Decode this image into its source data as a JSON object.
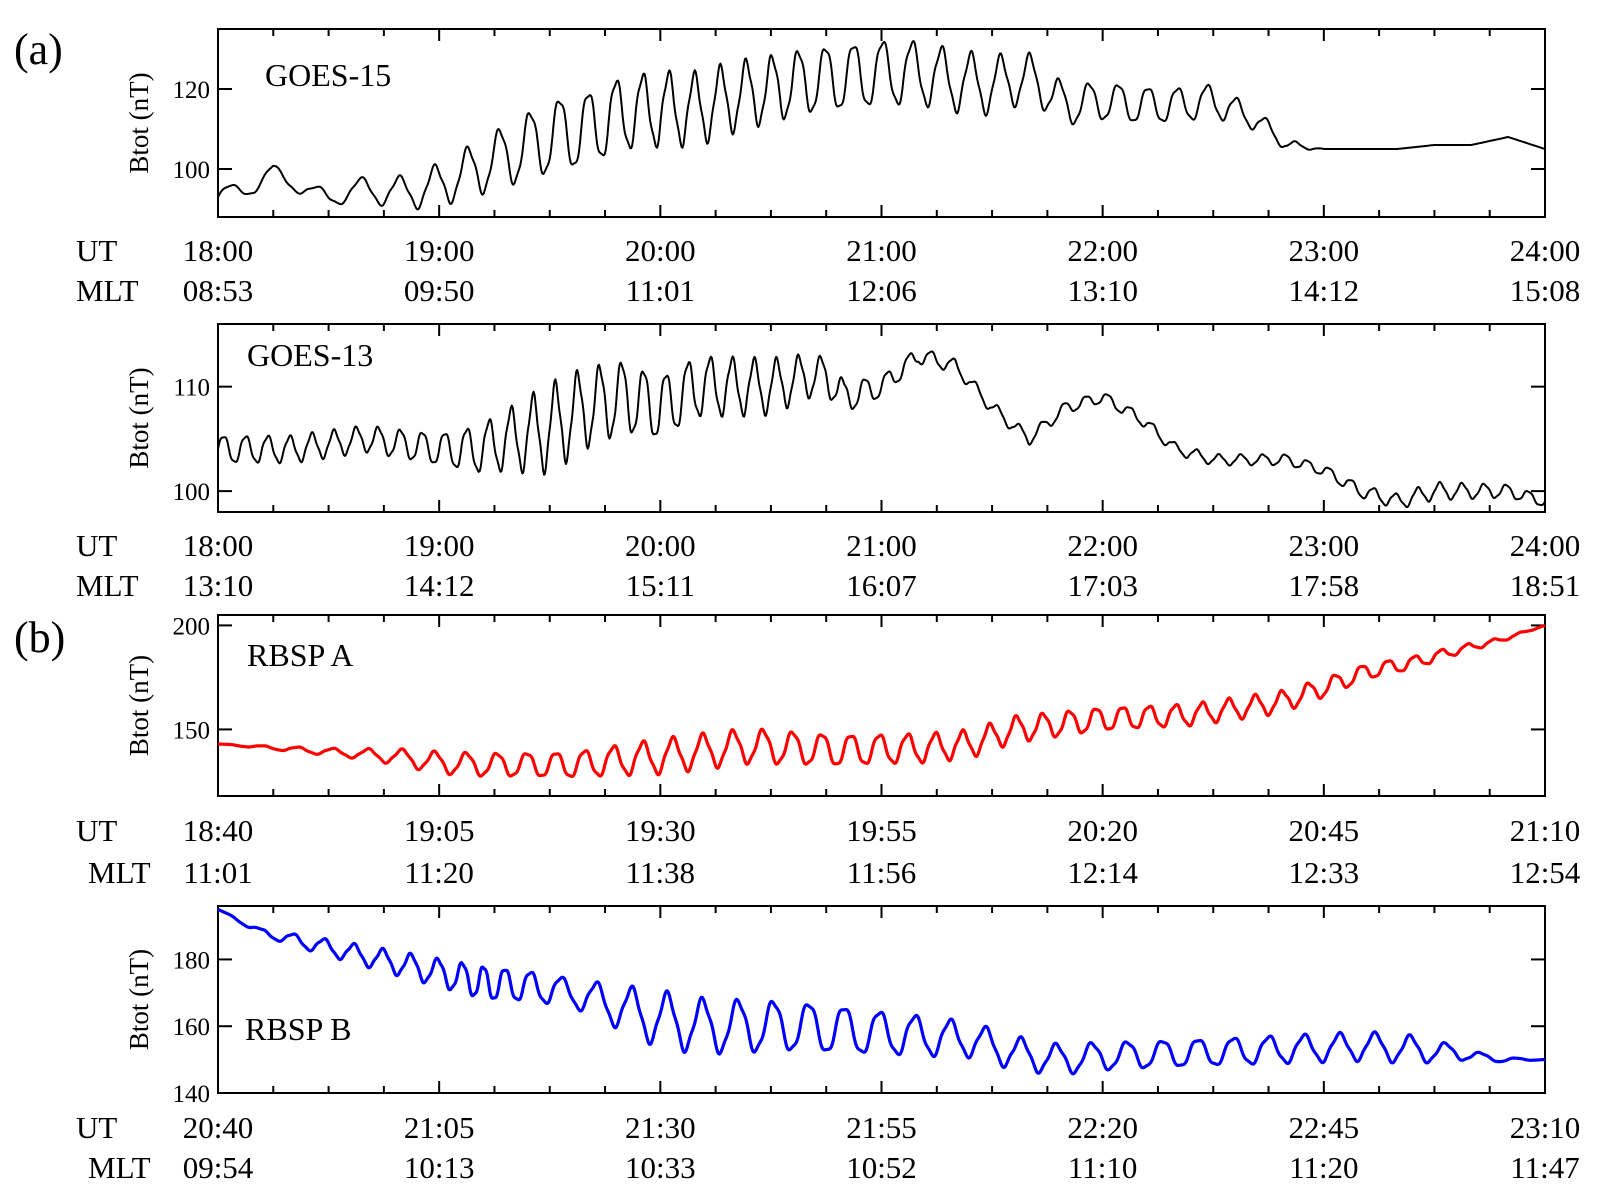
{
  "figure": {
    "panel_a_label": "(a)",
    "panel_b_label": "(b)"
  },
  "chart_data": [
    {
      "type": "line",
      "label": "GOES-15",
      "ylabel": "Btot (nT)",
      "color": "#000000",
      "ylim": [
        88,
        135
      ],
      "yticks": [
        100,
        120
      ],
      "xrange": [
        0,
        360
      ],
      "row_labels": [
        "UT",
        "MLT"
      ],
      "ut": [
        "18:00",
        "19:00",
        "20:00",
        "21:00",
        "22:00",
        "23:00",
        "24:00"
      ],
      "mlt": [
        "08:53",
        "09:50",
        "11:01",
        "12:06",
        "13:10",
        "14:12",
        "15:08"
      ],
      "osc": [
        [
          0,
          2,
          12
        ],
        [
          30,
          2,
          12
        ],
        [
          60,
          5,
          9
        ],
        [
          90,
          9,
          8
        ],
        [
          120,
          9,
          7
        ],
        [
          150,
          8,
          7
        ],
        [
          180,
          8,
          8
        ],
        [
          210,
          7,
          8
        ],
        [
          225,
          5,
          8
        ],
        [
          270,
          4,
          8
        ],
        [
          300,
          0,
          8
        ],
        [
          360,
          0,
          8
        ]
      ],
      "x": [
        0,
        10,
        15,
        20,
        25,
        30,
        40,
        50,
        60,
        70,
        80,
        90,
        100,
        110,
        120,
        130,
        140,
        150,
        160,
        170,
        180,
        190,
        200,
        210,
        220,
        230,
        240,
        250,
        260,
        270,
        280,
        285,
        290,
        300,
        310,
        320,
        330,
        340,
        350,
        360
      ],
      "y": [
        93,
        96,
        99,
        97,
        94,
        93,
        95,
        94,
        96,
        100,
        104,
        108,
        110,
        114,
        115,
        115,
        118,
        120,
        122,
        123,
        124,
        124,
        122,
        121,
        123,
        116,
        117,
        116,
        116,
        117,
        113,
        110,
        106,
        105,
        105,
        105,
        106,
        106,
        108,
        105
      ]
    },
    {
      "type": "line",
      "label": "GOES-13",
      "ylabel": "Btot (nT)",
      "color": "#000000",
      "ylim": [
        98,
        116
      ],
      "yticks": [
        100,
        110
      ],
      "xrange": [
        0,
        360
      ],
      "row_labels": [
        "UT",
        "MLT"
      ],
      "ut": [
        "18:00",
        "19:00",
        "20:00",
        "21:00",
        "22:00",
        "23:00",
        "24:00"
      ],
      "mlt": [
        "13:10",
        "14:12",
        "15:11",
        "16:07",
        "17:03",
        "17:58",
        "18:51"
      ],
      "osc": [
        [
          0,
          1.3,
          6
        ],
        [
          40,
          1.2,
          6
        ],
        [
          60,
          1.5,
          6
        ],
        [
          75,
          2.5,
          6
        ],
        [
          90,
          4,
          6
        ],
        [
          120,
          3,
          6
        ],
        [
          150,
          2.5,
          6
        ],
        [
          170,
          1.5,
          6
        ],
        [
          180,
          1,
          6
        ],
        [
          200,
          0.6,
          6
        ],
        [
          270,
          0.5,
          6
        ],
        [
          300,
          0.5,
          6
        ],
        [
          330,
          0.8,
          6
        ],
        [
          360,
          0.5,
          6
        ]
      ],
      "x": [
        0,
        20,
        40,
        60,
        70,
        80,
        90,
        100,
        110,
        120,
        130,
        140,
        150,
        160,
        165,
        170,
        180,
        190,
        200,
        210,
        220,
        230,
        240,
        250,
        260,
        270,
        280,
        290,
        300,
        310,
        320,
        330,
        340,
        350,
        360
      ],
      "y": [
        104,
        104,
        105,
        104,
        104,
        105,
        106,
        108,
        109,
        108,
        110,
        110,
        110,
        111,
        111,
        109,
        110,
        113,
        112,
        108,
        105,
        108,
        109,
        107,
        104,
        103,
        103,
        103,
        102,
        100,
        99,
        100,
        100,
        100,
        99
      ]
    },
    {
      "type": "line",
      "label": "RBSP A",
      "ylabel": "Btot (nT)",
      "color": "#ff0000",
      "ylim": [
        118,
        205
      ],
      "yticks": [
        150,
        200
      ],
      "xrange": [
        0,
        150
      ],
      "row_labels": [
        "UT",
        "MLT"
      ],
      "ut": [
        "18:40",
        "19:05",
        "19:30",
        "19:55",
        "20:20",
        "20:45",
        "21:10"
      ],
      "mlt": [
        "11:01",
        "11:20",
        "11:38",
        "11:56",
        "12:14",
        "12:33",
        "12:54"
      ],
      "osc": [
        [
          0,
          0,
          4
        ],
        [
          15,
          2,
          4
        ],
        [
          25,
          5,
          3.6
        ],
        [
          40,
          6,
          3.2
        ],
        [
          50,
          8,
          3.4
        ],
        [
          60,
          8,
          3.4
        ],
        [
          75,
          7,
          3.2
        ],
        [
          90,
          6,
          3
        ],
        [
          110,
          5,
          3
        ],
        [
          120,
          5,
          3
        ],
        [
          135,
          3,
          3
        ],
        [
          150,
          0,
          3
        ]
      ],
      "x": [
        0,
        10,
        20,
        25,
        30,
        40,
        50,
        60,
        70,
        80,
        85,
        90,
        100,
        110,
        120,
        125,
        130,
        135,
        140,
        145,
        150
      ],
      "y": [
        143,
        140,
        137,
        134,
        133,
        133,
        137,
        142,
        140,
        141,
        143,
        150,
        155,
        157,
        163,
        170,
        178,
        182,
        188,
        193,
        200
      ]
    },
    {
      "type": "line",
      "label": "RBSP B",
      "ylabel": "Btot (nT)",
      "color": "#0000ff",
      "ylim": [
        140,
        196
      ],
      "yticks": [
        140,
        160,
        180
      ],
      "xrange": [
        0,
        150
      ],
      "row_labels": [
        "UT",
        "MLT"
      ],
      "ut": [
        "20:40",
        "21:05",
        "21:30",
        "21:55",
        "22:20",
        "22:45",
        "23:10"
      ],
      "mlt": [
        "09:54",
        "10:13",
        "10:33",
        "10:52",
        "11:10",
        "11:20",
        "11:47"
      ],
      "osc": [
        [
          0,
          0,
          4
        ],
        [
          10,
          2,
          3.5
        ],
        [
          25,
          4,
          3
        ],
        [
          30,
          5,
          2.2
        ],
        [
          40,
          4,
          4
        ],
        [
          50,
          8,
          4
        ],
        [
          70,
          7,
          4
        ],
        [
          85,
          5,
          4
        ],
        [
          100,
          4,
          4
        ],
        [
          135,
          4,
          4
        ],
        [
          143,
          1,
          4
        ],
        [
          150,
          0,
          4
        ]
      ],
      "x": [
        0,
        5,
        10,
        15,
        20,
        25,
        30,
        35,
        40,
        45,
        50,
        55,
        60,
        65,
        70,
        75,
        80,
        85,
        90,
        95,
        100,
        110,
        120,
        130,
        140,
        145,
        150
      ],
      "y": [
        195,
        188,
        185,
        182,
        179,
        176,
        173,
        172,
        170,
        166,
        162,
        160,
        160,
        160,
        159,
        158,
        157,
        156,
        152,
        150,
        151,
        152,
        153,
        154,
        152,
        150,
        150
      ]
    }
  ]
}
